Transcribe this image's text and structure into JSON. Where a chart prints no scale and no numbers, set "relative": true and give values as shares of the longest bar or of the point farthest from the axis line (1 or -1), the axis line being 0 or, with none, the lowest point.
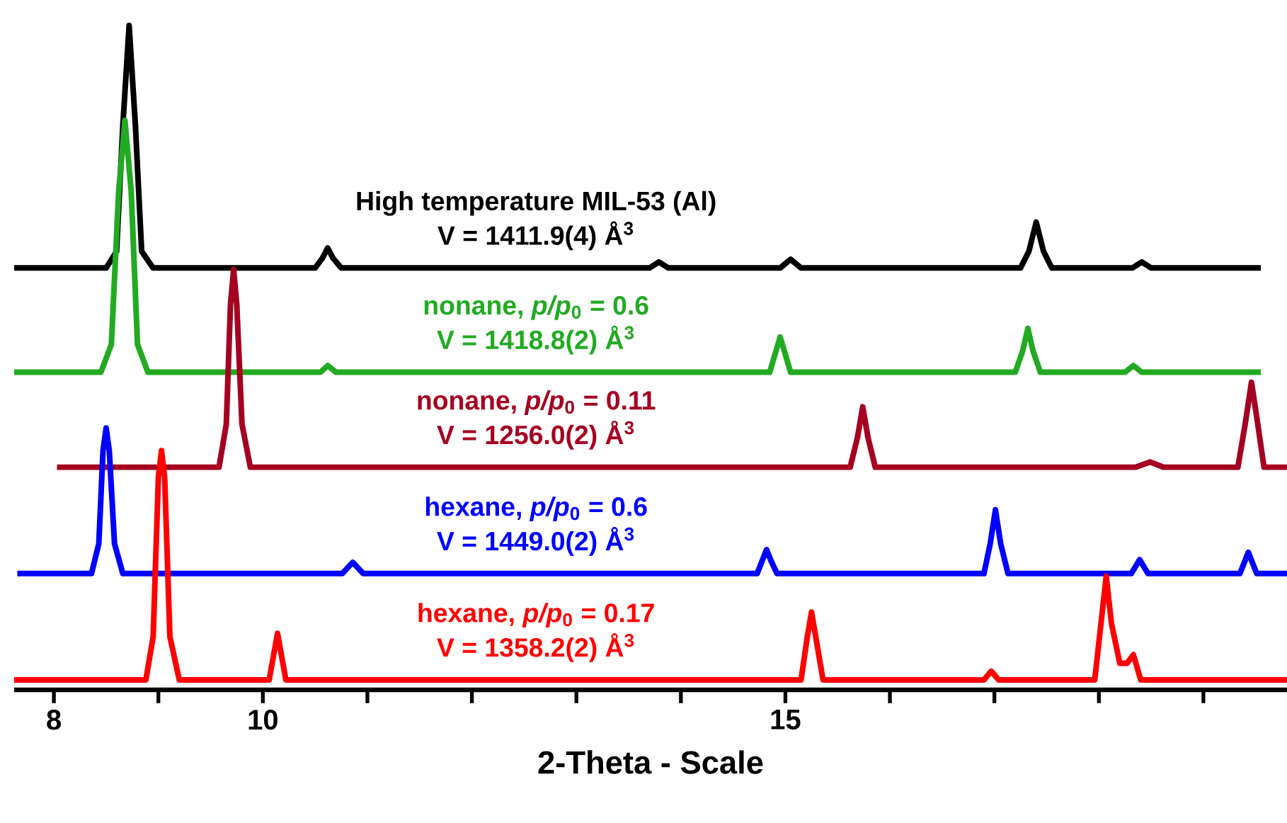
{
  "chart_data": {
    "type": "line",
    "relative": true,
    "xlabel": "2-Theta - Scale",
    "xlim": [
      7.62,
      19.8
    ],
    "xticks": [
      8,
      {
        "value": 9,
        "label": null
      },
      10,
      {
        "value": 11,
        "label": null
      },
      {
        "value": 12,
        "label": null
      },
      {
        "value": 13,
        "label": null
      },
      {
        "value": 14,
        "label": null
      },
      15,
      {
        "value": 16,
        "label": null
      },
      {
        "value": 17,
        "label": null
      },
      {
        "value": 18,
        "label": null
      },
      {
        "value": 19,
        "label": null
      }
    ],
    "grid": false,
    "marker": "none",
    "line_style": "solid",
    "series": [
      {
        "name": "High temperature MIL-53 (Al)",
        "color": "#000000",
        "x": [
          7.62,
          8.5,
          8.6,
          8.66,
          8.72,
          8.78,
          8.84,
          8.95,
          10.5,
          10.57,
          10.62,
          10.67,
          10.75,
          13.7,
          13.79,
          13.88,
          14.95,
          15.05,
          15.15,
          17.25,
          17.33,
          17.4,
          17.47,
          17.55,
          18.32,
          18.41,
          18.5,
          19.55
        ],
        "values": [
          0.635,
          0.635,
          0.66,
          0.85,
          1.0,
          0.85,
          0.66,
          0.635,
          0.635,
          0.65,
          0.665,
          0.65,
          0.635,
          0.635,
          0.644,
          0.635,
          0.635,
          0.648,
          0.635,
          0.635,
          0.66,
          0.704,
          0.66,
          0.635,
          0.635,
          0.644,
          0.635,
          0.635
        ]
      },
      {
        "name": "nonane, *p/p*$_{0}$ = 0.6",
        "color": "#22aa22",
        "x": [
          7.62,
          8.45,
          8.55,
          8.62,
          8.68,
          8.74,
          8.8,
          8.9,
          10.55,
          10.62,
          10.7,
          14.85,
          14.91,
          14.95,
          14.99,
          15.05,
          17.2,
          17.27,
          17.32,
          17.37,
          17.44,
          18.25,
          18.33,
          18.41,
          19.55
        ],
        "values": [
          0.478,
          0.478,
          0.52,
          0.75,
          0.857,
          0.75,
          0.52,
          0.478,
          0.478,
          0.488,
          0.478,
          0.478,
          0.51,
          0.531,
          0.51,
          0.478,
          0.478,
          0.51,
          0.544,
          0.51,
          0.478,
          0.478,
          0.488,
          0.478,
          0.478
        ]
      },
      {
        "name": "nonane, *p/p*$_{0}$ = 0.11",
        "color": "#a50021",
        "x": [
          8.03,
          9.58,
          9.65,
          9.69,
          9.72,
          9.75,
          9.8,
          9.88,
          15.62,
          15.69,
          15.74,
          15.79,
          15.86,
          18.35,
          18.49,
          18.62,
          19.33,
          19.4,
          19.46,
          19.52,
          19.58,
          19.8
        ],
        "values": [
          0.335,
          0.335,
          0.4,
          0.58,
          0.633,
          0.58,
          0.4,
          0.335,
          0.335,
          0.38,
          0.426,
          0.38,
          0.335,
          0.335,
          0.343,
          0.335,
          0.335,
          0.4,
          0.463,
          0.4,
          0.335,
          0.335
        ]
      },
      {
        "name": "hexane, *p/p*$_{0}$ = 0.6",
        "color": "#0000ff",
        "x": [
          7.65,
          8.36,
          8.43,
          8.47,
          8.5,
          8.53,
          8.58,
          8.66,
          10.76,
          10.86,
          10.96,
          14.73,
          14.78,
          14.82,
          14.86,
          14.92,
          16.9,
          16.96,
          17.01,
          17.06,
          17.13,
          18.31,
          18.39,
          18.47,
          19.35,
          19.43,
          19.51,
          19.8
        ],
        "values": [
          0.175,
          0.175,
          0.22,
          0.36,
          0.394,
          0.36,
          0.22,
          0.175,
          0.175,
          0.192,
          0.175,
          0.175,
          0.195,
          0.211,
          0.195,
          0.175,
          0.175,
          0.22,
          0.271,
          0.22,
          0.175,
          0.175,
          0.196,
          0.175,
          0.175,
          0.207,
          0.175,
          0.175
        ]
      },
      {
        "name": "hexane, *p/p*$_{0}$ = 0.17",
        "color": "#ff0000",
        "x": [
          7.62,
          8.88,
          8.95,
          9.0,
          9.03,
          9.06,
          9.11,
          9.2,
          10.06,
          10.14,
          10.22,
          15.15,
          15.21,
          15.25,
          15.29,
          15.36,
          16.9,
          16.97,
          17.04,
          17.96,
          18.02,
          18.07,
          18.12,
          18.2,
          18.27,
          18.33,
          18.4,
          19.8
        ],
        "values": [
          0.015,
          0.015,
          0.08,
          0.32,
          0.36,
          0.32,
          0.08,
          0.015,
          0.015,
          0.085,
          0.015,
          0.015,
          0.08,
          0.117,
          0.08,
          0.015,
          0.015,
          0.028,
          0.015,
          0.015,
          0.1,
          0.171,
          0.1,
          0.04,
          0.04,
          0.053,
          0.015,
          0.015
        ]
      }
    ],
    "annotations": [
      "V = 1411.9(4) Å$^{3}$",
      "V = 1418.8(2) Å$^{3}$",
      "V = 1256.0(2) Å$^{3}$",
      "V = 1449.0(2) Å$^{3}$",
      "V = 1358.2(2) Å$^{3}$"
    ]
  }
}
